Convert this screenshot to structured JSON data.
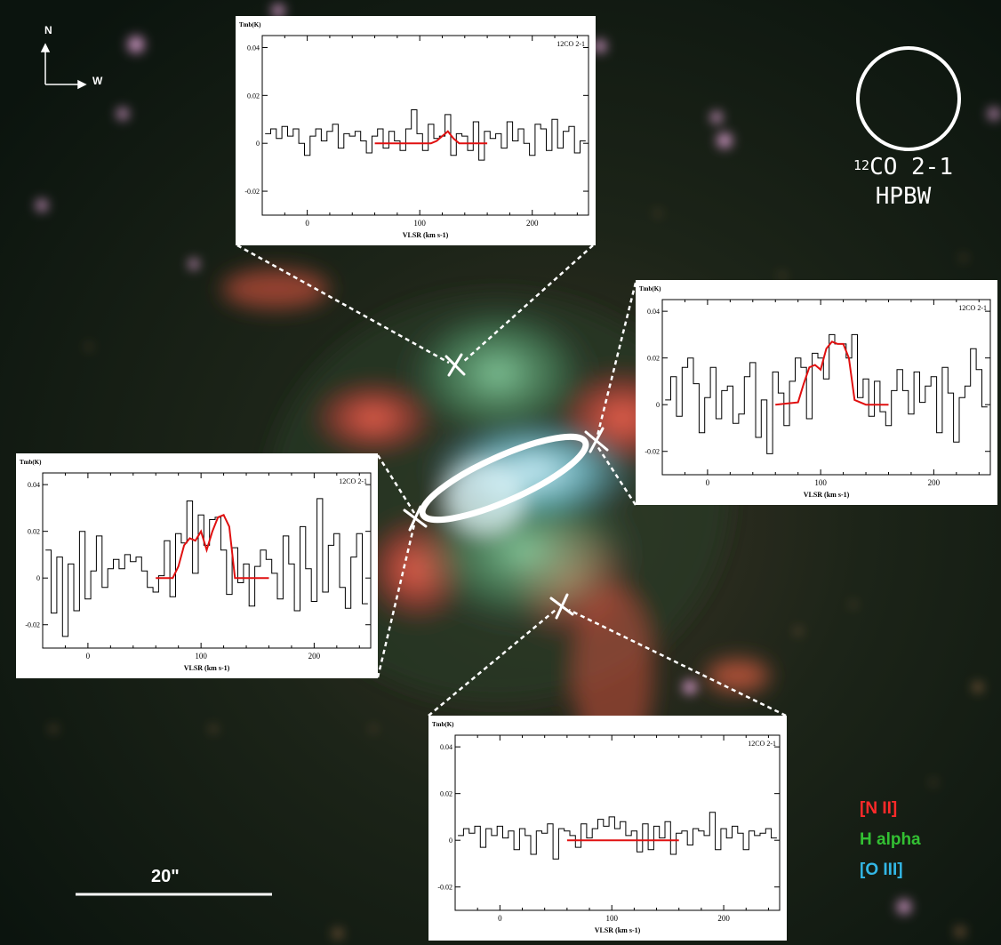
{
  "beam": {
    "molecule": "CO 2-1",
    "isotope": "12",
    "label": "HPBW"
  },
  "compass": {
    "north": "N",
    "west": "W"
  },
  "scale_bar": {
    "label": "20\""
  },
  "filters": [
    {
      "label": "[N II]",
      "color": "#ff2a2a"
    },
    {
      "label": "H alpha",
      "color": "#33c033"
    },
    {
      "label": "[O III]",
      "color": "#33b7e6"
    }
  ],
  "colors": {
    "spectrum_line": "#000000",
    "fit_line": "#e01010",
    "overlay": "#ffffff"
  },
  "chart_data": [
    {
      "type": "line",
      "position": "north",
      "title": "12CO 2-1",
      "ylabel": "Tmb(K)",
      "xlabel": "VLSR (km s-1)",
      "xlim": [
        -40,
        250
      ],
      "ylim": [
        -0.03,
        0.045
      ],
      "xticks": [
        0,
        100,
        200
      ],
      "yticks": [
        -0.02,
        0,
        0.02,
        0.04
      ],
      "series": [
        {
          "kind": "step",
          "x": [
            -35,
            -30,
            -25,
            -20,
            -15,
            -10,
            -5,
            0,
            5,
            10,
            15,
            20,
            25,
            30,
            35,
            40,
            45,
            50,
            55,
            60,
            65,
            70,
            75,
            80,
            85,
            90,
            95,
            100,
            105,
            110,
            115,
            120,
            125,
            130,
            135,
            140,
            145,
            150,
            155,
            160,
            165,
            170,
            175,
            180,
            185,
            190,
            195,
            200,
            205,
            210,
            215,
            220,
            225,
            230,
            235,
            240,
            245
          ],
          "values": [
            0.004,
            0.006,
            0.002,
            0.007,
            0.003,
            0.006,
            0,
            -0.005,
            0.003,
            0.006,
            0.001,
            0.005,
            0.008,
            -0.002,
            0.004,
            0.003,
            0.005,
            0.001,
            -0.004,
            0.003,
            0.006,
            -0.002,
            0.005,
            0.001,
            -0.003,
            0.006,
            0.014,
            0.004,
            -0.003,
            0.008,
            0.002,
            0.003,
            0.012,
            -0.005,
            0.004,
            0.003,
            -0.003,
            0.009,
            -0.007,
            0.005,
            0.002,
            0.004,
            -0.002,
            0.009,
            0.001,
            0.006,
            0,
            -0.005,
            0.008,
            0.006,
            -0.003,
            0.01,
            -0.002,
            0.005,
            0.007,
            -0.004,
            0.001
          ]
        },
        {
          "kind": "fit",
          "x": [
            60,
            110,
            115,
            120,
            125,
            130,
            135,
            160
          ],
          "values": [
            0,
            0,
            0.001,
            0.003,
            0.005,
            0.002,
            0,
            0
          ]
        }
      ]
    },
    {
      "type": "line",
      "position": "east",
      "title": "12CO 2-1",
      "ylabel": "Tmb(K)",
      "xlabel": "VLSR (km s-1)",
      "xlim": [
        -40,
        250
      ],
      "ylim": [
        -0.03,
        0.045
      ],
      "xticks": [
        0,
        100,
        200
      ],
      "yticks": [
        -0.02,
        0,
        0.02,
        0.04
      ],
      "series": [
        {
          "kind": "step",
          "x": [
            -35,
            -30,
            -25,
            -20,
            -15,
            -10,
            -5,
            0,
            5,
            10,
            15,
            20,
            25,
            30,
            35,
            40,
            45,
            50,
            55,
            60,
            65,
            70,
            75,
            80,
            85,
            90,
            95,
            100,
            105,
            110,
            115,
            120,
            125,
            130,
            135,
            140,
            145,
            150,
            155,
            160,
            165,
            170,
            175,
            180,
            185,
            190,
            195,
            200,
            205,
            210,
            215,
            220,
            225,
            230,
            235,
            240,
            245
          ],
          "values": [
            0.002,
            0.012,
            -0.005,
            0.016,
            0.02,
            0.009,
            -0.012,
            0.003,
            0.016,
            -0.006,
            0.006,
            0.008,
            -0.008,
            -0.004,
            0.012,
            0.018,
            -0.014,
            0.002,
            -0.021,
            0.014,
            0.005,
            -0.009,
            0.01,
            0.02,
            0.016,
            -0.006,
            0.022,
            0.02,
            0.011,
            0.03,
            0.026,
            0.026,
            0.02,
            0.03,
            0.003,
            0.011,
            -0.005,
            0.01,
            -0.003,
            -0.009,
            0.006,
            0.015,
            0.006,
            -0.004,
            0.014,
            0.001,
            0.008,
            0.012,
            -0.012,
            0.016,
            0.005,
            -0.016,
            0.003,
            0.008,
            0.024,
            0.015,
            -0.001
          ]
        },
        {
          "kind": "fit",
          "x": [
            60,
            80,
            85,
            90,
            95,
            100,
            105,
            110,
            115,
            120,
            125,
            130,
            140,
            160
          ],
          "values": [
            0,
            0.001,
            0.009,
            0.016,
            0.017,
            0.015,
            0.024,
            0.027,
            0.026,
            0.026,
            0.02,
            0.002,
            0,
            0
          ]
        }
      ]
    },
    {
      "type": "line",
      "position": "west",
      "title": "12CO 2-1",
      "ylabel": "Tmb(K)",
      "xlabel": "VLSR (km s-1)",
      "xlim": [
        -40,
        250
      ],
      "ylim": [
        -0.03,
        0.045
      ],
      "xticks": [
        0,
        100,
        200
      ],
      "yticks": [
        -0.02,
        0,
        0.02,
        0.04
      ],
      "series": [
        {
          "kind": "step",
          "x": [
            -35,
            -30,
            -25,
            -20,
            -15,
            -10,
            -5,
            0,
            5,
            10,
            15,
            20,
            25,
            30,
            35,
            40,
            45,
            50,
            55,
            60,
            65,
            70,
            75,
            80,
            85,
            90,
            95,
            100,
            105,
            110,
            115,
            120,
            125,
            130,
            135,
            140,
            145,
            150,
            155,
            160,
            165,
            170,
            175,
            180,
            185,
            190,
            195,
            200,
            205,
            210,
            215,
            220,
            225,
            230,
            235,
            240,
            245
          ],
          "values": [
            0.012,
            -0.015,
            0.009,
            -0.025,
            0.006,
            -0.014,
            0.02,
            -0.009,
            0.003,
            0.018,
            -0.004,
            0.004,
            0.008,
            0.004,
            0.01,
            0.007,
            0.009,
            0.003,
            -0.004,
            -0.006,
            0.001,
            0.016,
            -0.008,
            0.019,
            0.015,
            0.033,
            0.002,
            0.027,
            0.014,
            0.025,
            0.026,
            0.012,
            -0.007,
            0.013,
            -0.002,
            0.006,
            -0.012,
            0.005,
            0.012,
            0.008,
            0.002,
            -0.009,
            0.018,
            0.006,
            -0.014,
            0.022,
            0.004,
            -0.01,
            0.034,
            -0.006,
            0.014,
            0.019,
            -0.004,
            -0.013,
            0.009,
            0.019,
            -0.011
          ]
        },
        {
          "kind": "fit",
          "x": [
            60,
            75,
            80,
            85,
            90,
            95,
            100,
            105,
            110,
            115,
            120,
            125,
            130,
            160
          ],
          "values": [
            0,
            0,
            0.005,
            0.014,
            0.017,
            0.016,
            0.02,
            0.012,
            0.02,
            0.026,
            0.027,
            0.022,
            0,
            0
          ]
        }
      ]
    },
    {
      "type": "line",
      "position": "south",
      "title": "12CO 2-1",
      "ylabel": "Tmb(K)",
      "xlabel": "VLSR (km s-1)",
      "xlim": [
        -40,
        250
      ],
      "ylim": [
        -0.03,
        0.045
      ],
      "xticks": [
        0,
        100,
        200
      ],
      "yticks": [
        -0.02,
        0,
        0.02,
        0.04
      ],
      "series": [
        {
          "kind": "step",
          "x": [
            -35,
            -30,
            -25,
            -20,
            -15,
            -10,
            -5,
            0,
            5,
            10,
            15,
            20,
            25,
            30,
            35,
            40,
            45,
            50,
            55,
            60,
            65,
            70,
            75,
            80,
            85,
            90,
            95,
            100,
            105,
            110,
            115,
            120,
            125,
            130,
            135,
            140,
            145,
            150,
            155,
            160,
            165,
            170,
            175,
            180,
            185,
            190,
            195,
            200,
            205,
            210,
            215,
            220,
            225,
            230,
            235,
            240,
            245
          ],
          "values": [
            0.002,
            0.005,
            0.003,
            0.006,
            -0.003,
            0.005,
            0.002,
            0.006,
            0.001,
            0.004,
            -0.004,
            0.005,
            0.002,
            -0.006,
            0.004,
            0.003,
            0.007,
            -0.008,
            0.005,
            0.004,
            0.002,
            -0.003,
            0.007,
            0.001,
            0.005,
            0.009,
            0.006,
            0.01,
            0.005,
            0.008,
            0.002,
            0.004,
            -0.005,
            0.007,
            -0.004,
            0.006,
            0.001,
            0.008,
            -0.006,
            0.003,
            0.004,
            -0.002,
            0.005,
            0.004,
            0.002,
            0.012,
            -0.004,
            0.005,
            0.001,
            0.006,
            0.003,
            -0.004,
            0.004,
            0.002,
            0.003,
            0.005,
            0.001
          ]
        },
        {
          "kind": "fit",
          "x": [
            60,
            160
          ],
          "values": [
            0,
            0
          ]
        }
      ]
    }
  ]
}
